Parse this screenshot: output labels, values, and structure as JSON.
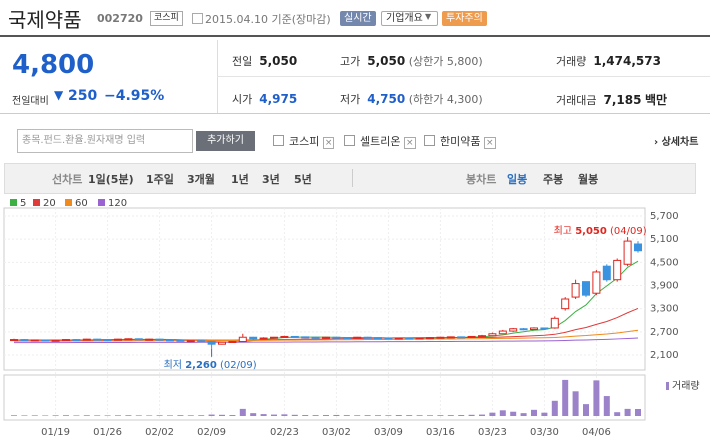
{
  "header": {
    "title": "국제약품",
    "code": "002720",
    "market": "코스피",
    "date": "2015.04.10 기준(장마감)",
    "buttons": [
      "실시간",
      "기업개요",
      "투자주의"
    ]
  },
  "quote": {
    "price": "4,800",
    "change_label": "전일대비",
    "change": "250",
    "change_pct": "−4.95%",
    "stats": [
      {
        "label": "전일",
        "value": "5,050"
      },
      {
        "label": "고가",
        "value": "5,050",
        "note": "(상한가 5,800)"
      },
      {
        "label": "거래량",
        "value": "1,474,573"
      },
      {
        "label": "시가",
        "value": "4,975"
      },
      {
        "label": "저가",
        "value": "4,750",
        "note": "(하한가 4,300)"
      },
      {
        "label": "거래대금",
        "value": "7,185",
        "unit": "백만"
      }
    ]
  },
  "search": {
    "placeholder": "종목.펀드.환율.원자재명 입력",
    "button": "추가하기",
    "compare": [
      "코스피",
      "셀트리온",
      "한미약품"
    ],
    "detail": "상세차트"
  },
  "toolbar": {
    "line_label": "선차트",
    "line_periods": [
      "1일(5분)",
      "1주일",
      "3개월",
      "1년",
      "3년",
      "5년"
    ],
    "candle_label": "봉차트",
    "candle_periods": [
      "일봉",
      "주봉",
      "월봉"
    ]
  },
  "chart_data": {
    "type": "candlestick",
    "categories": [
      null,
      null,
      null,
      null,
      "01/19",
      null,
      null,
      null,
      null,
      "01/26",
      null,
      null,
      null,
      null,
      "02/02",
      null,
      null,
      null,
      null,
      "02/09",
      null,
      null,
      null,
      null,
      null,
      null,
      "02/23",
      null,
      null,
      null,
      null,
      "03/02",
      null,
      null,
      null,
      null,
      "03/09",
      null,
      null,
      null,
      null,
      "03/16",
      null,
      null,
      null,
      null,
      "03/23",
      null,
      null,
      null,
      null,
      "03/30",
      null,
      null,
      null,
      null,
      "04/06",
      null,
      null,
      null,
      null
    ],
    "open": [
      2490,
      2500,
      2480,
      2490,
      2470,
      2480,
      2500,
      2490,
      2510,
      2500,
      2490,
      2510,
      2520,
      2500,
      2510,
      2490,
      2480,
      2460,
      2470,
      2450,
      2380,
      2430,
      2450,
      2560,
      2520,
      2540,
      2560,
      2580,
      2570,
      2560,
      2550,
      2560,
      2550,
      2540,
      2560,
      2550,
      2540,
      2530,
      2540,
      2530,
      2540,
      2550,
      2560,
      2570,
      2560,
      2580,
      2600,
      2650,
      2720,
      2780,
      2760,
      2800,
      2800,
      3300,
      3600,
      4000,
      3700,
      4400,
      4050,
      4450,
      4975
    ],
    "high": [
      2520,
      2510,
      2500,
      2500,
      2490,
      2510,
      2510,
      2520,
      2520,
      2510,
      2520,
      2530,
      2530,
      2520,
      2520,
      2500,
      2490,
      2480,
      2480,
      2460,
      2440,
      2460,
      2650,
      2570,
      2560,
      2570,
      2600,
      2590,
      2580,
      2570,
      2570,
      2570,
      2560,
      2570,
      2570,
      2560,
      2550,
      2550,
      2550,
      2550,
      2560,
      2570,
      2580,
      2580,
      2590,
      2620,
      2680,
      2750,
      2800,
      2800,
      2820,
      2810,
      3100,
      3600,
      4050,
      4000,
      4300,
      4450,
      4600,
      5050,
      5050
    ],
    "low": [
      2480,
      2470,
      2470,
      2460,
      2460,
      2470,
      2480,
      2480,
      2490,
      2480,
      2480,
      2500,
      2490,
      2490,
      2480,
      2470,
      2450,
      2450,
      2440,
      2260,
      2370,
      2420,
      2440,
      2500,
      2510,
      2530,
      2550,
      2560,
      2550,
      2540,
      2540,
      2540,
      2530,
      2530,
      2540,
      2530,
      2520,
      2520,
      2520,
      2520,
      2530,
      2540,
      2550,
      2550,
      2550,
      2570,
      2590,
      2640,
      2700,
      2740,
      2750,
      2760,
      2780,
      3250,
      3550,
      3600,
      3650,
      4000,
      4000,
      4400,
      4750
    ],
    "close": [
      2500,
      2480,
      2490,
      2470,
      2480,
      2500,
      2490,
      2510,
      2500,
      2490,
      2510,
      2520,
      2500,
      2510,
      2490,
      2480,
      2460,
      2470,
      2450,
      2380,
      2430,
      2450,
      2560,
      2520,
      2540,
      2560,
      2580,
      2570,
      2560,
      2550,
      2560,
      2550,
      2540,
      2560,
      2550,
      2540,
      2530,
      2540,
      2530,
      2540,
      2550,
      2560,
      2570,
      2560,
      2580,
      2600,
      2650,
      2720,
      2780,
      2760,
      2800,
      2780,
      3050,
      3550,
      3950,
      3650,
      4250,
      4050,
      4550,
      5050,
      4800
    ],
    "up_color": "#e0261f",
    "down_color": "#3b93e0",
    "series": [
      {
        "name": "5",
        "color": "#3cb043",
        "values": [
          2490,
          2490,
          2490,
          2488,
          2484,
          2484,
          2486,
          2490,
          2496,
          2500,
          2502,
          2506,
          2506,
          2506,
          2506,
          2502,
          2492,
          2482,
          2470,
          2446,
          2436,
          2436,
          2454,
          2474,
          2500,
          2532,
          2552,
          2562,
          2562,
          2564,
          2564,
          2558,
          2554,
          2552,
          2550,
          2548,
          2544,
          2540,
          2538,
          2536,
          2538,
          2542,
          2550,
          2556,
          2564,
          2574,
          2592,
          2622,
          2666,
          2702,
          2742,
          2758,
          2822,
          2992,
          3226,
          3396,
          3690,
          3890,
          4090,
          4370,
          4530
        ]
      },
      {
        "name": "20",
        "color": "#e03a3a",
        "values": [
          2490,
          2490,
          2490,
          2490,
          2490,
          2490,
          2490,
          2490,
          2490,
          2492,
          2492,
          2494,
          2494,
          2494,
          2494,
          2494,
          2492,
          2490,
          2490,
          2486,
          2484,
          2484,
          2488,
          2490,
          2494,
          2498,
          2502,
          2506,
          2510,
          2512,
          2516,
          2520,
          2524,
          2528,
          2532,
          2536,
          2540,
          2542,
          2546,
          2548,
          2550,
          2550,
          2550,
          2552,
          2552,
          2554,
          2558,
          2566,
          2576,
          2586,
          2598,
          2610,
          2636,
          2686,
          2756,
          2812,
          2894,
          2968,
          3070,
          3194,
          3306
        ]
      },
      {
        "name": "60",
        "color": "#f08a1c",
        "values": [
          2460,
          2460,
          2460,
          2460,
          2460,
          2462,
          2462,
          2462,
          2464,
          2464,
          2466,
          2466,
          2468,
          2468,
          2470,
          2470,
          2470,
          2472,
          2472,
          2472,
          2474,
          2474,
          2476,
          2478,
          2480,
          2482,
          2484,
          2486,
          2488,
          2490,
          2492,
          2494,
          2496,
          2498,
          2500,
          2502,
          2504,
          2506,
          2508,
          2510,
          2512,
          2514,
          2516,
          2518,
          2520,
          2522,
          2526,
          2530,
          2534,
          2538,
          2542,
          2546,
          2554,
          2570,
          2590,
          2604,
          2626,
          2644,
          2670,
          2704,
          2740
        ]
      },
      {
        "name": "120",
        "color": "#9a63d2",
        "values": [
          2420,
          2420,
          2421,
          2421,
          2422,
          2422,
          2423,
          2423,
          2424,
          2424,
          2425,
          2425,
          2426,
          2426,
          2427,
          2427,
          2428,
          2428,
          2429,
          2429,
          2430,
          2430,
          2431,
          2432,
          2433,
          2434,
          2435,
          2436,
          2437,
          2438,
          2439,
          2440,
          2441,
          2442,
          2443,
          2444,
          2445,
          2446,
          2447,
          2448,
          2449,
          2450,
          2451,
          2452,
          2453,
          2454,
          2456,
          2458,
          2460,
          2462,
          2464,
          2466,
          2470,
          2476,
          2484,
          2490,
          2498,
          2506,
          2516,
          2528,
          2540
        ]
      }
    ],
    "ylim": [
      2100,
      5700
    ],
    "yticks": [
      {
        "value": 2100,
        "label": "2,100"
      },
      {
        "value": 2700,
        "label": "2,700"
      },
      {
        "value": 3300,
        "label": "3,300"
      },
      {
        "value": 3900,
        "label": "3,900"
      },
      {
        "value": 4500,
        "label": "4,500"
      },
      {
        "value": 5100,
        "label": "5,100"
      },
      {
        "value": 5700,
        "label": "5,700"
      }
    ],
    "grid": true,
    "annotations": [
      {
        "label": "최고",
        "value": "5,050",
        "date": "(04/09)",
        "at": 5050,
        "index": 59,
        "color": "#e0261f"
      },
      {
        "label": "최저",
        "value": "2,260",
        "date": "(02/09)",
        "at": 2260,
        "index": 19,
        "color": "#2a6fc0"
      }
    ],
    "volume": {
      "name": "거래량",
      "color": "#9b82c9",
      "ylim": [
        0,
        8000000
      ],
      "values": [
        150000,
        120000,
        130000,
        110000,
        140000,
        160000,
        120000,
        150000,
        130000,
        120000,
        140000,
        160000,
        130000,
        120000,
        150000,
        130000,
        170000,
        140000,
        160000,
        300000,
        250000,
        200000,
        1500000,
        600000,
        400000,
        300000,
        350000,
        250000,
        200000,
        180000,
        200000,
        220000,
        180000,
        150000,
        170000,
        160000,
        150000,
        200000,
        180000,
        160000,
        150000,
        170000,
        180000,
        200000,
        250000,
        300000,
        700000,
        1200000,
        900000,
        600000,
        1300000,
        700000,
        3200000,
        7600000,
        5200000,
        2500000,
        7500000,
        4200000,
        800000,
        1500000,
        1474573
      ]
    }
  }
}
